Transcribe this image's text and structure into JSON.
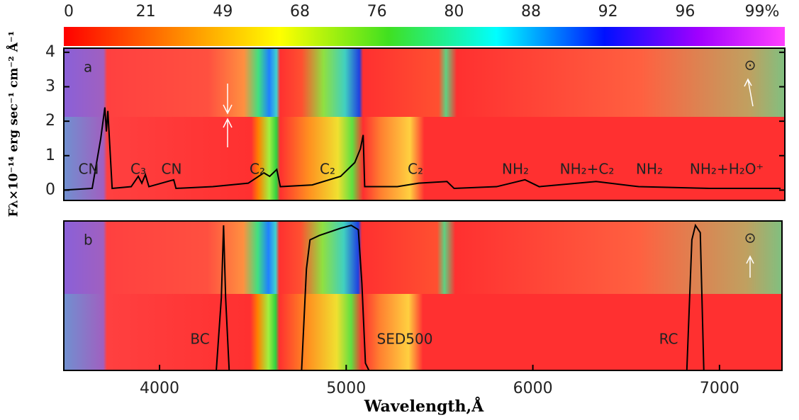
{
  "chart_data": [
    {
      "type": "colorbar",
      "ticks": [
        0,
        21,
        49,
        68,
        76,
        80,
        88,
        92,
        96,
        {
          "value": 99,
          "label": "99%"
        }
      ]
    },
    {
      "type": "line",
      "panel_label": "a",
      "ylabel": "Fλ×10⁻¹⁴ erg sec⁻¹ cm⁻² Å⁻¹",
      "xlim": [
        3487,
        7350
      ],
      "ylim": [
        -0.3,
        4.12
      ],
      "yticks": [
        0,
        1,
        2,
        3,
        4
      ],
      "annotations": [
        "CN",
        "C₃",
        "CN",
        "C₂",
        "C₂",
        "C₂",
        "NH₂",
        "NH₂+C₂",
        "NH₂",
        "NH₂+H₂O⁺",
        "⊙"
      ],
      "series": [
        {
          "color": "#000000",
          "x": [
            3487,
            3639,
            3685,
            3707,
            3715,
            3723,
            3746,
            3848,
            3886,
            3905,
            3924,
            3943,
            4076,
            4088,
            4285,
            4475,
            4559,
            4590,
            4628,
            4647,
            4818,
            4970,
            5046,
            5076,
            5091,
            5099,
            5274,
            5388,
            5540,
            5578,
            5806,
            5958,
            6034,
            6339,
            6567,
            6947,
            7327
          ],
          "values": [
            0,
            0.05,
            1.5,
            2.4,
            1.7,
            2.3,
            0.05,
            0.1,
            0.4,
            0.2,
            0.45,
            0.1,
            0.3,
            0.05,
            0.1,
            0.2,
            0.5,
            0.4,
            0.6,
            0.1,
            0.15,
            0.4,
            0.8,
            1.2,
            1.6,
            0.1,
            0.1,
            0.2,
            0.25,
            0.05,
            0.1,
            0.3,
            0.1,
            0.25,
            0.1,
            0.05,
            0.05
          ]
        }
      ]
    },
    {
      "type": "line",
      "panel_label": "b",
      "xlabel": "Wavelength,Å",
      "xlim": [
        3487,
        7350
      ],
      "xticks": [
        4000,
        5000,
        6000,
        7000
      ],
      "ylim": [
        0,
        1.03
      ],
      "annotations": [
        "⊙"
      ],
      "series": [
        {
          "name": "BC",
          "color": "#000000",
          "x": [
            4304,
            4331,
            4343,
            4354,
            4373
          ],
          "values": [
            0,
            0.5,
            1.0,
            0.5,
            0
          ]
        },
        {
          "name": "SED500",
          "color": "#000000",
          "x": [
            4761,
            4787,
            4806,
            4856,
            4970,
            5027,
            5065,
            5084,
            5103,
            5122
          ],
          "values": [
            0,
            0.7,
            0.9,
            0.93,
            0.98,
            1.0,
            0.97,
            0.6,
            0.05,
            0
          ]
        },
        {
          "name": "RC",
          "color": "#000000",
          "x": [
            6825,
            6852,
            6871,
            6897,
            6916
          ],
          "values": [
            0,
            0.9,
            1.0,
            0.95,
            0
          ]
        }
      ]
    }
  ]
}
